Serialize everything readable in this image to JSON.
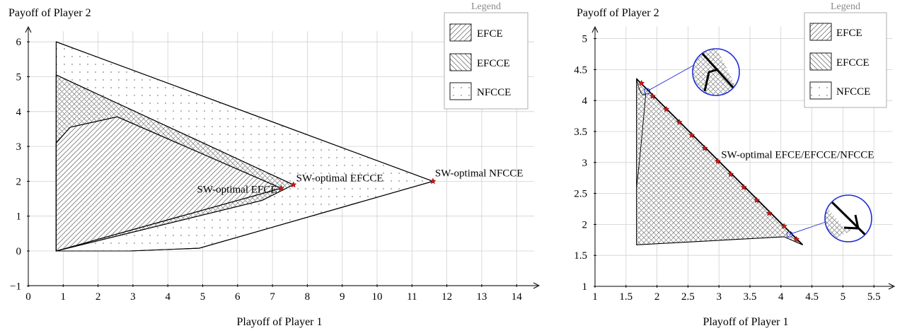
{
  "chart_data": [
    {
      "type": "area",
      "xlabel": "Playoff of Player 1",
      "ylabel": "Payoff of Player 2",
      "xlim": [
        0,
        14.5
      ],
      "ylim": [
        -1,
        6.3
      ],
      "xticks": [
        0,
        1,
        2,
        3,
        4,
        5,
        6,
        7,
        8,
        9,
        10,
        11,
        12,
        13,
        14
      ],
      "yticks": [
        -1,
        0,
        1,
        2,
        3,
        4,
        5,
        6
      ],
      "grid": true,
      "legend": {
        "title": "Legend",
        "placement": "top-right",
        "entries": [
          "EFCE",
          "EFCCE",
          "NFCCE"
        ]
      },
      "series": [
        {
          "name": "NFCCE",
          "pattern": "dots",
          "polygon": [
            [
              0.8,
              6.0
            ],
            [
              11.6,
              2.0
            ],
            [
              4.9,
              0.08
            ],
            [
              2.9,
              0.0
            ],
            [
              0.8,
              0.0
            ]
          ]
        },
        {
          "name": "EFCCE",
          "pattern": "crosshatch",
          "polygon": [
            [
              0.8,
              5.05
            ],
            [
              7.6,
              1.9
            ],
            [
              6.7,
              1.45
            ],
            [
              0.8,
              0.0
            ]
          ]
        },
        {
          "name": "EFCE",
          "pattern": "hatch",
          "polygon": [
            [
              0.8,
              3.1
            ],
            [
              1.2,
              3.55
            ],
            [
              2.55,
              3.85
            ],
            [
              7.25,
              1.8
            ],
            [
              0.8,
              0.0
            ]
          ]
        }
      ],
      "points": [
        {
          "label": "SW-optimal EFCE",
          "x": 7.25,
          "y": 1.8
        },
        {
          "label": "SW-optimal EFCCE",
          "x": 7.6,
          "y": 1.9
        },
        {
          "label": "SW-optimal NFCCE",
          "x": 11.6,
          "y": 2.0
        }
      ]
    },
    {
      "type": "area",
      "xlabel": "Playoff of Player 1",
      "ylabel": "Payoff of Player 2",
      "xlim": [
        1,
        5.8
      ],
      "ylim": [
        1,
        5.2
      ],
      "xticks": [
        1,
        1.5,
        2,
        2.5,
        3,
        3.5,
        4,
        4.5,
        5,
        5.5
      ],
      "yticks": [
        1,
        1.5,
        2,
        2.5,
        3,
        3.5,
        4,
        4.5,
        5
      ],
      "grid": true,
      "legend": {
        "title": "Legend",
        "placement": "top-right",
        "entries": [
          "EFCE",
          "EFCCE",
          "NFCCE"
        ]
      },
      "region": [
        [
          1.67,
          4.35
        ],
        [
          4.35,
          1.67
        ],
        [
          4.05,
          1.8
        ],
        [
          1.67,
          1.67
        ]
      ],
      "frontier": [
        [
          1.75,
          4.28
        ],
        [
          1.93,
          4.07
        ],
        [
          2.15,
          3.86
        ],
        [
          2.36,
          3.65
        ],
        [
          2.56,
          3.44
        ],
        [
          2.77,
          3.23
        ],
        [
          2.98,
          3.02
        ],
        [
          3.19,
          2.81
        ],
        [
          3.4,
          2.6
        ],
        [
          3.61,
          2.39
        ],
        [
          3.81,
          2.18
        ],
        [
          4.05,
          1.97
        ],
        [
          4.25,
          1.76
        ]
      ],
      "annotation": {
        "label": "SW-optimal EFCE/EFCCE/NFCCE",
        "x": 3.0,
        "y": 3.13
      },
      "zoom_points": [
        [
          1.84,
          4.15
        ],
        [
          4.14,
          1.84
        ]
      ]
    }
  ]
}
